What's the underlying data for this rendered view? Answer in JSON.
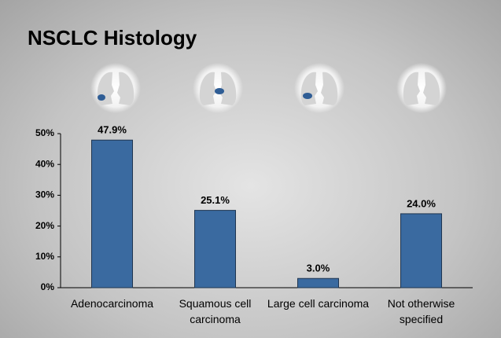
{
  "chart_data": {
    "type": "bar",
    "title": "NSCLC Histology",
    "categories": [
      "Adenocarcinoma",
      "Squamous cell carcinoma",
      "Large cell carcinoma",
      "Not otherwise specified"
    ],
    "values": [
      47.9,
      25.1,
      3.0,
      24.0
    ],
    "value_labels": [
      "47.9%",
      "25.1%",
      "3.0%",
      "24.0%"
    ],
    "color": "#3a6aa0",
    "ylim": [
      0,
      50
    ],
    "yticks": [
      {
        "value": 0,
        "label": "0%"
      },
      {
        "value": 10,
        "label": "10%"
      },
      {
        "value": 20,
        "label": "20%"
      },
      {
        "value": 30,
        "label": "30%"
      },
      {
        "value": 40,
        "label": "40%"
      },
      {
        "value": 50,
        "label": "50%"
      }
    ],
    "grid": false
  }
}
